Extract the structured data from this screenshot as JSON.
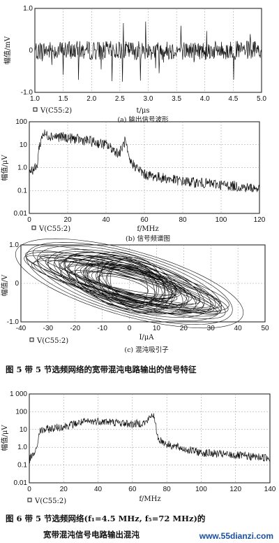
{
  "charts": [
    {
      "id": "a",
      "type": "line",
      "xlim": [
        1.0,
        5.0
      ],
      "ylim": [
        -1.0,
        1.0
      ],
      "xticks": [
        "1.0",
        "1.5",
        "2.0",
        "2.5",
        "3.0",
        "3.5",
        "4.0",
        "4.5",
        "5.0"
      ],
      "yticks": [
        "1.0",
        "0",
        "-1.0"
      ],
      "ylabel": "幅值/mV",
      "xlabel": "t/μs",
      "legend": "V(C55:2)",
      "caption": "(a) 输出信号波形"
    },
    {
      "id": "b",
      "type": "line",
      "xlim": [
        0,
        120
      ],
      "ylim_log": [
        0.01,
        100
      ],
      "xticks": [
        "0",
        "20",
        "40",
        "60",
        "80",
        "100",
        "120"
      ],
      "yticks": [
        "100",
        "10",
        "1.0",
        "0.1",
        "0.01"
      ],
      "ylabel": "幅值/μV",
      "xlabel": "f/MHz",
      "legend": "V(C55:2)",
      "caption": "(b) 信号频谱图"
    },
    {
      "id": "c",
      "type": "line",
      "xlim": [
        -40,
        50
      ],
      "ylim": [
        -1.0,
        1.0
      ],
      "xticks": [
        "-40",
        "-30",
        "-20",
        "-10",
        "0",
        "10",
        "20",
        "30",
        "40",
        "50"
      ],
      "yticks": [
        "1.0",
        "0",
        "-1.0"
      ],
      "ylabel": "幅值/V",
      "xlabel": "I/μA",
      "legend": "V(C55:2)",
      "caption": "(c) 混沌吸引子"
    },
    {
      "id": "d",
      "type": "line",
      "xlim": [
        0,
        140
      ],
      "ylim_log": [
        0.01,
        1000
      ],
      "xticks": [
        "0",
        "20",
        "40",
        "60",
        "80",
        "100",
        "120",
        "140"
      ],
      "yticks": [
        "1 000",
        "100",
        "10",
        "1.0",
        "0.1",
        "0.01"
      ],
      "ylabel": "幅值/μV",
      "xlabel": "f/MHz",
      "legend": "V(C55:2)"
    }
  ],
  "fig5_caption": "图 5    带 5 节选频网络的宽带混沌电路输出的信号特征",
  "fig6_caption_line1": "图 6    带 5 节选频网络(f₁=4.5 MHz, f₅=72 MHz)的",
  "fig6_caption_line2": "宽带混沌信号电路输出混沌",
  "watermark": "www.55dianzi.com",
  "chart_data": [
    {
      "type": "line",
      "title": "(a) 输出信号波形",
      "xlabel": "t/μs",
      "ylabel": "幅值/mV",
      "xlim": [
        1.0,
        5.0
      ],
      "ylim": [
        -1.0,
        1.0
      ],
      "series": [
        {
          "name": "V(C55:2)",
          "description": "noise-like chaotic waveform oscillating about 0 with spikes up to about ±0.8"
        }
      ]
    },
    {
      "type": "line",
      "title": "(b) 信号频谱图",
      "xlabel": "f/MHz",
      "ylabel": "幅值/μV",
      "yscale": "log",
      "xlim": [
        0,
        120
      ],
      "ylim": [
        0.01,
        100
      ],
      "series": [
        {
          "name": "V(C55:2)",
          "x": [
            0,
            4,
            5,
            7,
            10,
            20,
            30,
            40,
            47,
            50,
            52,
            55,
            60,
            70,
            80,
            100,
            120
          ],
          "y": [
            0.7,
            1.0,
            7,
            30,
            25,
            20,
            15,
            10,
            4,
            15,
            2,
            1.2,
            0.5,
            0.35,
            0.25,
            0.18,
            0.12
          ]
        }
      ]
    },
    {
      "type": "line",
      "title": "(c) 混沌吸引子",
      "xlabel": "I/μA",
      "ylabel": "幅值/V",
      "xlim": [
        -40,
        50
      ],
      "ylim": [
        -1.0,
        1.0
      ],
      "series": [
        {
          "name": "V(C55:2)",
          "description": "dense elliptical attractor centred near (0, 0), tilted, spanning roughly -35..40 μA"
        }
      ]
    },
    {
      "type": "line",
      "xlabel": "f/MHz",
      "ylabel": "幅值/μV",
      "yscale": "log",
      "xlim": [
        0,
        140
      ],
      "ylim": [
        0.01,
        1000
      ],
      "series": [
        {
          "name": "V(C55:2)",
          "x": [
            0,
            4,
            6,
            10,
            20,
            30,
            40,
            50,
            60,
            68,
            72,
            75,
            80,
            90,
            100,
            120,
            140
          ],
          "y": [
            0.2,
            0.6,
            8,
            10,
            15,
            25,
            30,
            25,
            20,
            25,
            80,
            3,
            1.5,
            0.8,
            0.5,
            0.35,
            0.25
          ]
        }
      ]
    }
  ]
}
